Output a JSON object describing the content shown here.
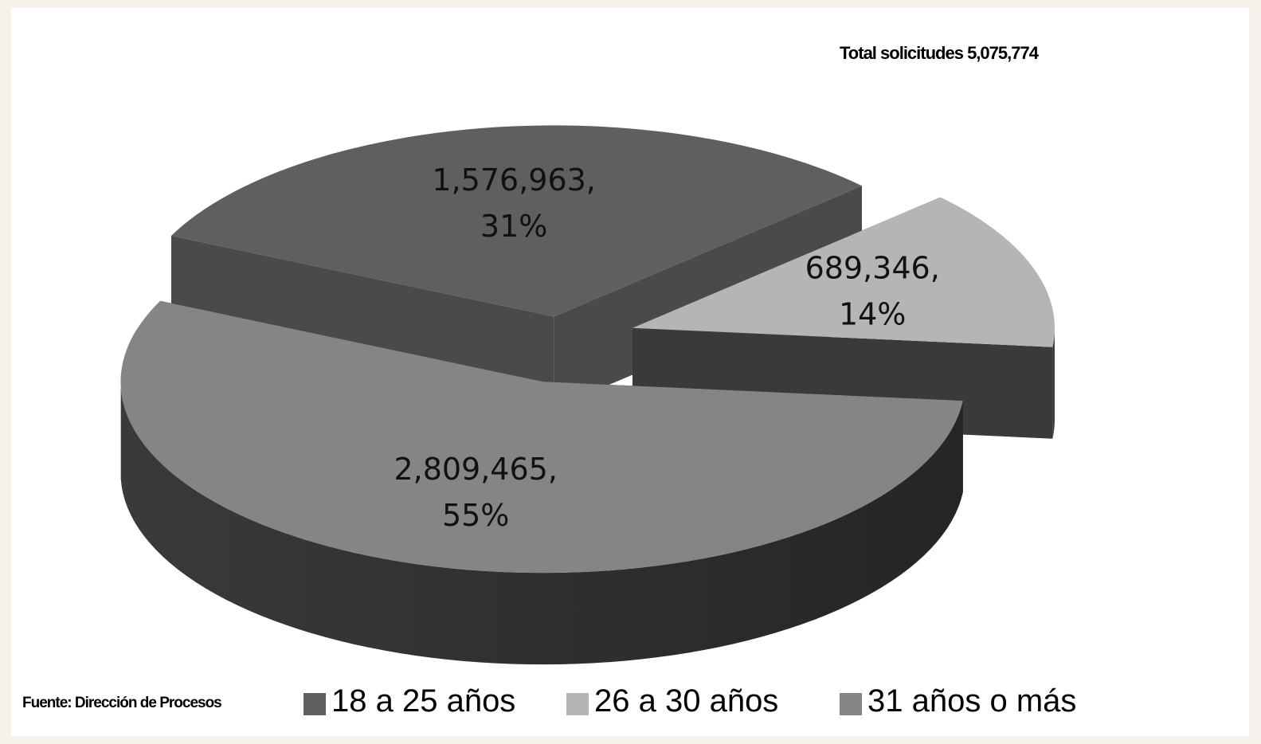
{
  "chart_data": {
    "type": "pie",
    "title": "",
    "total_label": "Total solicitudes 5,075,774",
    "categories": [
      "18 a 25 años",
      "26 a 30 años",
      "31 años o más"
    ],
    "values": [
      1576963,
      689346,
      2809465
    ],
    "percents": [
      "31%",
      "14%",
      "55%"
    ],
    "data_labels": [
      {
        "line1": "1,576,963,",
        "line2": "31%"
      },
      {
        "line1": "689,346,",
        "line2": "14%"
      },
      {
        "line1": "2,809,465,",
        "line2": "55%"
      }
    ],
    "colors": [
      "#5f5f5f",
      "#b5b5b5",
      "#858585"
    ],
    "side_colors": [
      "#4a4a4a",
      "#3a3a3a",
      "#2e2e2e"
    ],
    "exploded": true,
    "three_d": true,
    "legend_position": "bottom"
  },
  "source": "Fuente: Dirección de Procesos"
}
